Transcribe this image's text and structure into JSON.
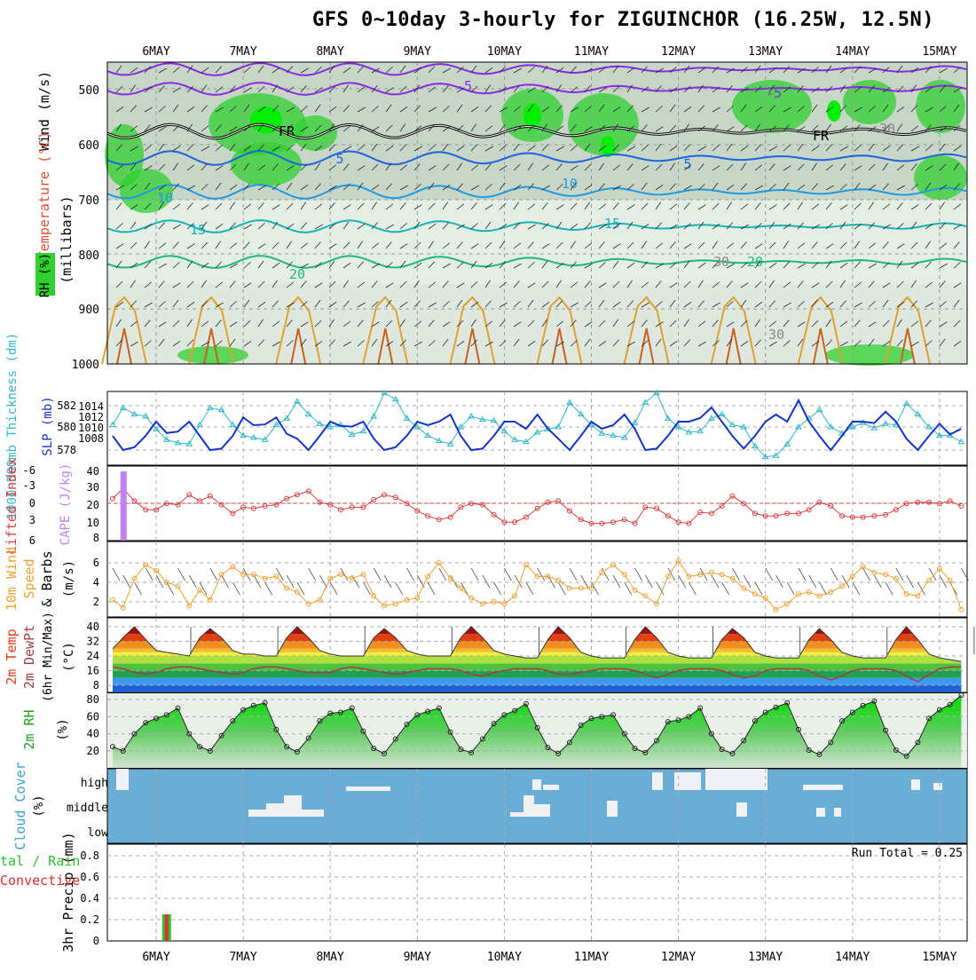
{
  "title": "GFS 0~10day 3-hourly for ZIGUINCHOR (16.25W, 12.5N)",
  "dates": [
    "6MAY",
    "7MAY",
    "8MAY",
    "9MAY",
    "10MAY",
    "11MAY",
    "12MAY",
    "13MAY",
    "14MAY",
    "15MAY"
  ],
  "colors": {
    "rh_green": "#2fd02f",
    "rh_light": "#c8dcc8",
    "temp_line_purple": "#8a2be2",
    "temp_line_blue": "#1e64dc",
    "temp_line_teal": "#17b4b4",
    "temp_line_green": "#20b878",
    "temp_line_orange": "#e0a030",
    "thickness": "#2fb8c8",
    "slp": "#1434c8",
    "cape": "#c080f0",
    "lifted_index": "#d84040",
    "wind_speed": "#f0a030",
    "precip_total": "#30c030",
    "precip_conv": "#e03030",
    "cloud_blue": "#6aaed6"
  },
  "panels": {
    "cross_section": {
      "label_wind": "Wind (m/s)",
      "label_temp": "Temperature (°C)",
      "label_rh": "RH (%)",
      "label_mb": "(millibars)",
      "yticks": [
        "500",
        "600",
        "700",
        "800",
        "900",
        "1000"
      ],
      "contour_labels": [
        "-5",
        "-5",
        "5",
        "5",
        "10",
        "10",
        "15",
        "15",
        "20",
        "20",
        "FR",
        "FR",
        "30",
        "30",
        "30"
      ]
    },
    "thickness": {
      "label_left": "1000-500mb Thickness (dm)",
      "label_right": "SLP (mb)",
      "yticks_left": [
        "582",
        "580",
        "578"
      ],
      "yticks_right": [
        "1014",
        "1012",
        "1010",
        "1008"
      ]
    },
    "cape": {
      "label_left": "Lifted Index",
      "label_right": "CAPE (J/kg)",
      "yticks_left": [
        "-6",
        "-3",
        "0",
        "3",
        "6"
      ],
      "yticks_right": [
        "40",
        "30",
        "20",
        "10",
        "8"
      ]
    },
    "wind10": {
      "label_a": "10m Wind",
      "label_b": "Speed",
      "label_c": "& Barbs",
      "label_unit": "(m/s)",
      "yticks": [
        "6",
        "4",
        "2"
      ]
    },
    "temp2m": {
      "label_a": "2m Temp",
      "label_b": "2m DewPt",
      "label_c": "(6hr Min/Max)",
      "label_unit": "(°C)",
      "yticks": [
        "40",
        "32",
        "24",
        "16",
        "8"
      ]
    },
    "rh2m": {
      "label": "2m RH",
      "label_unit": "(%)",
      "yticks": [
        "80",
        "60",
        "40",
        "20"
      ]
    },
    "cloud": {
      "label": "Cloud Cover",
      "label_unit": "(%)",
      "levels": [
        "high",
        "middle",
        "low"
      ]
    },
    "precip": {
      "label_a": "3hr Precip (mm)",
      "label_b": "tal / Rain",
      "label_c": "Convective",
      "yticks": [
        "0.8",
        "0.6",
        "0.4",
        "0.2",
        "0"
      ],
      "run_total": "Run Total = 0.25"
    }
  },
  "chart_data": [
    {
      "type": "line",
      "name": "slp",
      "title": "SLP (mb)",
      "x": [
        "5.5",
        "5.62",
        "5.75",
        "5.88",
        "6.0",
        "6.12",
        "6.25",
        "6.38",
        "6.5",
        "6.62",
        "6.75",
        "6.88",
        "7.0",
        "7.12",
        "7.25",
        "7.38",
        "7.5",
        "7.62",
        "7.75",
        "7.88",
        "8.0",
        "8.12",
        "8.25",
        "8.38",
        "8.5",
        "8.62",
        "8.75",
        "8.88",
        "9.0",
        "9.12",
        "9.25",
        "9.38",
        "9.5",
        "9.62",
        "9.75",
        "9.88",
        "10.0",
        "10.12",
        "10.25",
        "10.38",
        "10.5",
        "10.62",
        "10.75",
        "10.88",
        "11.0",
        "11.12",
        "11.25",
        "11.38",
        "11.5",
        "11.62",
        "11.75",
        "11.88",
        "12.0",
        "12.12",
        "12.25",
        "12.38",
        "12.5",
        "12.62",
        "12.75",
        "12.88",
        "13.0",
        "13.12",
        "13.25",
        "13.38",
        "13.5",
        "13.62",
        "13.75",
        "13.88",
        "14.0",
        "14.12",
        "14.25",
        "14.38",
        "14.5",
        "14.62",
        "14.75",
        "14.88",
        "15.0",
        "15.12",
        "15.25"
      ],
      "values": [
        1010,
        1008,
        1008.4,
        1010,
        1012,
        1010.4,
        1010.6,
        1012,
        1010,
        1008,
        1008.2,
        1010,
        1012.6,
        1011.5,
        1011.6,
        1012.6,
        1010.3,
        1009.6,
        1008,
        1010,
        1012,
        1011.4,
        1011.3,
        1012,
        1009.6,
        1008,
        1008.4,
        1010,
        1012,
        1011.5,
        1012,
        1013,
        1010,
        1008,
        1008.2,
        1010,
        1012,
        1012,
        1011,
        1013,
        1011,
        1009.6,
        1008,
        1010,
        1012,
        1011,
        1011.5,
        1013,
        1011,
        1008,
        1008.2,
        1010,
        1012,
        1012,
        1012.5,
        1014,
        1012,
        1010,
        1008.2,
        1010,
        1012,
        1013,
        1012,
        1015,
        1012,
        1010,
        1008,
        1010,
        1012,
        1012,
        1011.8,
        1013.4,
        1012,
        1009.6,
        1008,
        1010,
        1011.7,
        1010.2,
        1011
      ]
    },
    {
      "type": "line",
      "name": "thickness",
      "title": "1000-500mb Thickness (dm)",
      "x": [
        "5.5",
        "5.62",
        "5.75",
        "5.88",
        "6.0",
        "6.12",
        "6.25",
        "6.38",
        "6.5",
        "6.62",
        "6.75",
        "6.88",
        "7.0",
        "7.12",
        "7.25",
        "7.38",
        "7.5",
        "7.62",
        "7.75",
        "7.88",
        "8.0",
        "8.12",
        "8.25",
        "8.38",
        "8.5",
        "8.62",
        "8.75",
        "8.88",
        "9.0",
        "9.12",
        "9.25",
        "9.38",
        "9.5",
        "9.62",
        "9.75",
        "9.88",
        "10.0",
        "10.12",
        "10.25",
        "10.38",
        "10.5",
        "10.62",
        "10.75",
        "10.88",
        "11.0",
        "11.12",
        "11.25",
        "11.38",
        "11.5",
        "11.62",
        "11.75",
        "11.88",
        "12.0",
        "12.12",
        "12.25",
        "12.38",
        "12.5",
        "12.62",
        "12.75",
        "12.88",
        "13.0",
        "13.12",
        "13.25",
        "13.38",
        "13.5",
        "13.62",
        "13.75",
        "13.88",
        "14.0",
        "14.12",
        "14.25",
        "14.38",
        "14.5",
        "14.62",
        "14.75",
        "14.88",
        "15.0",
        "15.12",
        "15.25"
      ],
      "values": [
        580.2,
        581.8,
        581.2,
        581,
        579.8,
        578.8,
        578.5,
        578.4,
        580.2,
        581.8,
        581.6,
        580.2,
        579.2,
        579,
        578.8,
        580.2,
        580.8,
        582.4,
        581.2,
        580.3,
        580,
        580.2,
        579.3,
        579.6,
        581,
        583.2,
        582.6,
        580.8,
        580,
        579.2,
        578.7,
        578.4,
        580,
        581,
        580.7,
        580.6,
        579.6,
        578.8,
        578.6,
        579.5,
        579.8,
        580,
        582.3,
        581.2,
        580.2,
        579.4,
        579.2,
        579,
        580.4,
        582.3,
        583.2,
        580.8,
        580,
        579.5,
        579.6,
        580.8,
        581.2,
        580.2,
        580,
        578.2,
        577.2,
        577.3,
        578.4,
        580,
        580.8,
        581.6,
        580,
        579.4,
        580,
        580.4,
        579.9,
        580.3,
        580.2,
        582.2,
        581.2,
        580,
        579.2,
        579.2,
        578.6
      ]
    },
    {
      "type": "line",
      "name": "lifted_index",
      "title": "Lifted Index",
      "x": [
        "5.5",
        "5.62",
        "5.75",
        "5.88",
        "6.0",
        "6.12",
        "6.25",
        "6.38",
        "6.5",
        "6.62",
        "6.75",
        "6.88",
        "7.0",
        "7.12",
        "7.25",
        "7.38",
        "7.5",
        "7.62",
        "7.75",
        "7.88",
        "8.0",
        "8.12",
        "8.25",
        "8.38",
        "8.5",
        "8.62",
        "8.75",
        "8.88",
        "9.0",
        "9.12",
        "9.25",
        "9.38",
        "9.5",
        "9.62",
        "9.75",
        "9.88",
        "10.0",
        "10.12",
        "10.25",
        "10.38",
        "10.5",
        "10.62",
        "10.75",
        "10.88",
        "11.0",
        "11.12",
        "11.25",
        "11.38",
        "11.5",
        "11.62",
        "11.75",
        "11.88",
        "12.0",
        "12.12",
        "12.25",
        "12.38",
        "12.5",
        "12.62",
        "12.75",
        "12.88",
        "13.0",
        "13.12",
        "13.25",
        "13.38",
        "13.5",
        "13.62",
        "13.75",
        "13.88",
        "14.0",
        "14.12",
        "14.25",
        "14.38",
        "14.5",
        "14.62",
        "14.75",
        "14.88",
        "15.0",
        "15.12",
        "15.25"
      ],
      "values": [
        2.8,
        1.2,
        3.2,
        4.6,
        4.6,
        3.6,
        3.8,
        2.2,
        3.2,
        2.4,
        3.8,
        5.2,
        4.2,
        4.4,
        4,
        3.8,
        2.8,
        2.2,
        1.6,
        3.4,
        3.8,
        4.6,
        4.2,
        4.2,
        3,
        2.2,
        2.6,
        3.6,
        4.8,
        5.6,
        6.2,
        5.8,
        4.2,
        3.6,
        3.8,
        5.4,
        6.6,
        6.6,
        5.8,
        4.4,
        3.4,
        3.2,
        4.8,
        6.2,
        6.8,
        6.8,
        6.6,
        6.2,
        6.8,
        4.2,
        4.4,
        5.6,
        6.6,
        6.8,
        5,
        5.2,
        4,
        2.4,
        3.6,
        5.2,
        5.6,
        5.6,
        5.2,
        5.2,
        4.6,
        3.4,
        4,
        5.6,
        5.8,
        5.8,
        5.6,
        5.4,
        4.6,
        3.6,
        3.4,
        3.4,
        3.6,
        3.2,
        4
      ]
    },
    {
      "type": "bar",
      "name": "cape",
      "title": "CAPE (J/kg)",
      "x": [
        "5.62"
      ],
      "values": [
        40
      ]
    },
    {
      "type": "line",
      "name": "wind_speed_10m",
      "title": "10m Wind Speed",
      "x": [
        "5.5",
        "5.62",
        "5.75",
        "5.88",
        "6.0",
        "6.12",
        "6.25",
        "6.38",
        "6.5",
        "6.62",
        "6.75",
        "6.88",
        "7.0",
        "7.12",
        "7.25",
        "7.38",
        "7.5",
        "7.62",
        "7.75",
        "7.88",
        "8.0",
        "8.12",
        "8.25",
        "8.38",
        "8.5",
        "8.62",
        "8.75",
        "8.88",
        "9.0",
        "9.12",
        "9.25",
        "9.38",
        "9.5",
        "9.62",
        "9.75",
        "9.88",
        "10.0",
        "10.12",
        "10.25",
        "10.38",
        "10.5",
        "10.62",
        "10.75",
        "10.88",
        "11.0",
        "11.12",
        "11.25",
        "11.38",
        "11.5",
        "11.62",
        "11.75",
        "11.88",
        "12.0",
        "12.12",
        "12.25",
        "12.38",
        "12.5",
        "12.62",
        "12.75",
        "12.88",
        "13.0",
        "13.12",
        "13.25",
        "13.38",
        "13.5",
        "13.62",
        "13.75",
        "13.88",
        "14.0",
        "14.12",
        "14.25",
        "14.38",
        "14.5",
        "14.62",
        "14.75",
        "14.88",
        "15.0",
        "15.12",
        "15.25"
      ],
      "values": [
        2.2,
        1.4,
        4.4,
        5.8,
        5.2,
        4,
        3.6,
        1.6,
        3.2,
        2.2,
        4.8,
        5.6,
        4.8,
        4.8,
        4.4,
        4.6,
        3.4,
        3,
        1.8,
        2.2,
        4.4,
        4.8,
        4.4,
        4.8,
        2.6,
        1.6,
        1.8,
        2.2,
        2.4,
        4.6,
        6,
        4.4,
        3.4,
        2.4,
        1.8,
        2,
        1.8,
        2.6,
        5.8,
        4.6,
        4.6,
        4.2,
        3.4,
        3.4,
        3.4,
        5,
        5.8,
        4.8,
        3.2,
        2.6,
        1.8,
        4.6,
        6.2,
        4.6,
        4.8,
        5,
        4.8,
        4.4,
        3.4,
        2.8,
        2.4,
        1.2,
        1.8,
        2.8,
        3,
        2.6,
        3,
        3.6,
        4.6,
        5.6,
        5,
        4.8,
        4.4,
        2.8,
        2.6,
        4.2,
        5.4,
        4.2,
        1.2
      ]
    },
    {
      "type": "area",
      "name": "temp_2m",
      "title": "2m Temp",
      "x": [
        "5.5",
        "5.62",
        "5.75",
        "5.88",
        "6.0",
        "6.12",
        "6.25",
        "6.38",
        "6.5",
        "6.62",
        "6.75",
        "6.88",
        "7.0",
        "7.12",
        "7.25",
        "7.38",
        "7.5",
        "7.62",
        "7.75",
        "7.88",
        "8.0",
        "8.12",
        "8.25",
        "8.38",
        "8.5",
        "8.62",
        "8.75",
        "8.88",
        "9.0",
        "9.12",
        "9.25",
        "9.38",
        "9.5",
        "9.62",
        "9.75",
        "9.88",
        "10.0",
        "10.12",
        "10.25",
        "10.38",
        "10.5",
        "10.62",
        "10.75",
        "10.88",
        "11.0",
        "11.12",
        "11.25",
        "11.38",
        "11.5",
        "11.62",
        "11.75",
        "11.88",
        "12.0",
        "12.12",
        "12.25",
        "12.38",
        "12.5",
        "12.62",
        "12.75",
        "12.88",
        "13.0",
        "13.12",
        "13.25",
        "13.38",
        "13.5",
        "13.62",
        "13.75",
        "13.88",
        "14.0",
        "14.12",
        "14.25",
        "14.38",
        "14.5",
        "14.62",
        "14.75",
        "14.88",
        "15.0",
        "15.12",
        "15.25"
      ],
      "values": [
        28,
        34,
        40,
        33,
        27,
        26,
        25,
        24,
        34,
        39,
        34,
        27,
        25,
        25,
        24,
        24,
        34,
        40,
        34,
        27,
        25,
        24,
        24,
        24,
        34,
        39,
        34,
        27,
        25,
        24,
        24,
        24,
        34,
        40,
        34,
        27,
        25,
        24,
        23,
        23,
        33,
        40,
        34,
        26,
        24,
        23,
        23,
        23,
        33,
        40,
        34,
        26,
        24,
        23,
        23,
        23,
        33,
        39,
        34,
        26,
        24,
        23,
        23,
        23,
        33,
        39,
        33,
        26,
        24,
        23,
        23,
        23,
        33,
        40,
        33,
        25,
        23,
        22,
        21
      ],
      "dewpoint": [
        18,
        17,
        15,
        14,
        15,
        17,
        18,
        18,
        17,
        16,
        15,
        14,
        15,
        17,
        18,
        18,
        17,
        16,
        15,
        15,
        15,
        17,
        18,
        17,
        16,
        15,
        14,
        15,
        16,
        17,
        17,
        17,
        16,
        14,
        13,
        15,
        16,
        17,
        17,
        17,
        16,
        14,
        14,
        15,
        16,
        17,
        17,
        17,
        16,
        14,
        12,
        14,
        16,
        17,
        17,
        17,
        16,
        14,
        12,
        13,
        16,
        17,
        17,
        17,
        16,
        13,
        11,
        13,
        16,
        17,
        17,
        17,
        16,
        13,
        10,
        14,
        17,
        18,
        18
      ]
    },
    {
      "type": "area",
      "name": "rh_2m",
      "title": "2m RH",
      "x": [
        "5.5",
        "5.62",
        "5.75",
        "5.88",
        "6.0",
        "6.12",
        "6.25",
        "6.38",
        "6.5",
        "6.62",
        "6.75",
        "6.88",
        "7.0",
        "7.12",
        "7.25",
        "7.38",
        "7.5",
        "7.62",
        "7.75",
        "7.88",
        "8.0",
        "8.12",
        "8.25",
        "8.38",
        "8.5",
        "8.62",
        "8.75",
        "8.88",
        "9.0",
        "9.12",
        "9.25",
        "9.38",
        "9.5",
        "9.62",
        "9.75",
        "9.88",
        "10.0",
        "10.12",
        "10.25",
        "10.38",
        "10.5",
        "10.62",
        "10.75",
        "10.88",
        "11.0",
        "11.12",
        "11.25",
        "11.38",
        "11.5",
        "11.62",
        "11.75",
        "11.88",
        "12.0",
        "12.12",
        "12.25",
        "12.38",
        "12.5",
        "12.62",
        "12.75",
        "12.88",
        "13.0",
        "13.12",
        "13.25",
        "13.38",
        "13.5",
        "13.62",
        "13.75",
        "13.88",
        "14.0",
        "14.12",
        "14.25",
        "14.38",
        "14.5",
        "14.62",
        "14.75",
        "14.88",
        "15.0",
        "15.12",
        "15.25"
      ],
      "values": [
        25,
        20,
        40,
        53,
        58,
        62,
        70,
        40,
        25,
        20,
        38,
        55,
        68,
        73,
        76,
        45,
        25,
        19,
        35,
        55,
        64,
        65,
        70,
        43,
        23,
        17,
        34,
        51,
        62,
        66,
        70,
        42,
        22,
        18,
        34,
        52,
        62,
        67,
        75,
        47,
        24,
        17,
        30,
        50,
        58,
        60,
        62,
        40,
        23,
        18,
        32,
        54,
        56,
        60,
        70,
        40,
        22,
        17,
        32,
        55,
        65,
        71,
        76,
        45,
        21,
        16,
        30,
        55,
        65,
        73,
        78,
        44,
        21,
        14,
        30,
        58,
        68,
        74,
        85
      ]
    },
    {
      "type": "bar",
      "name": "precip_3hr",
      "title": "3hr Precip (mm)",
      "x": [
        "6.12"
      ],
      "values": [
        0.25
      ],
      "series": [
        {
          "name": "Total / Rain",
          "values": [
            0.25
          ]
        },
        {
          "name": "Convective",
          "values": [
            0.25
          ]
        }
      ]
    }
  ]
}
